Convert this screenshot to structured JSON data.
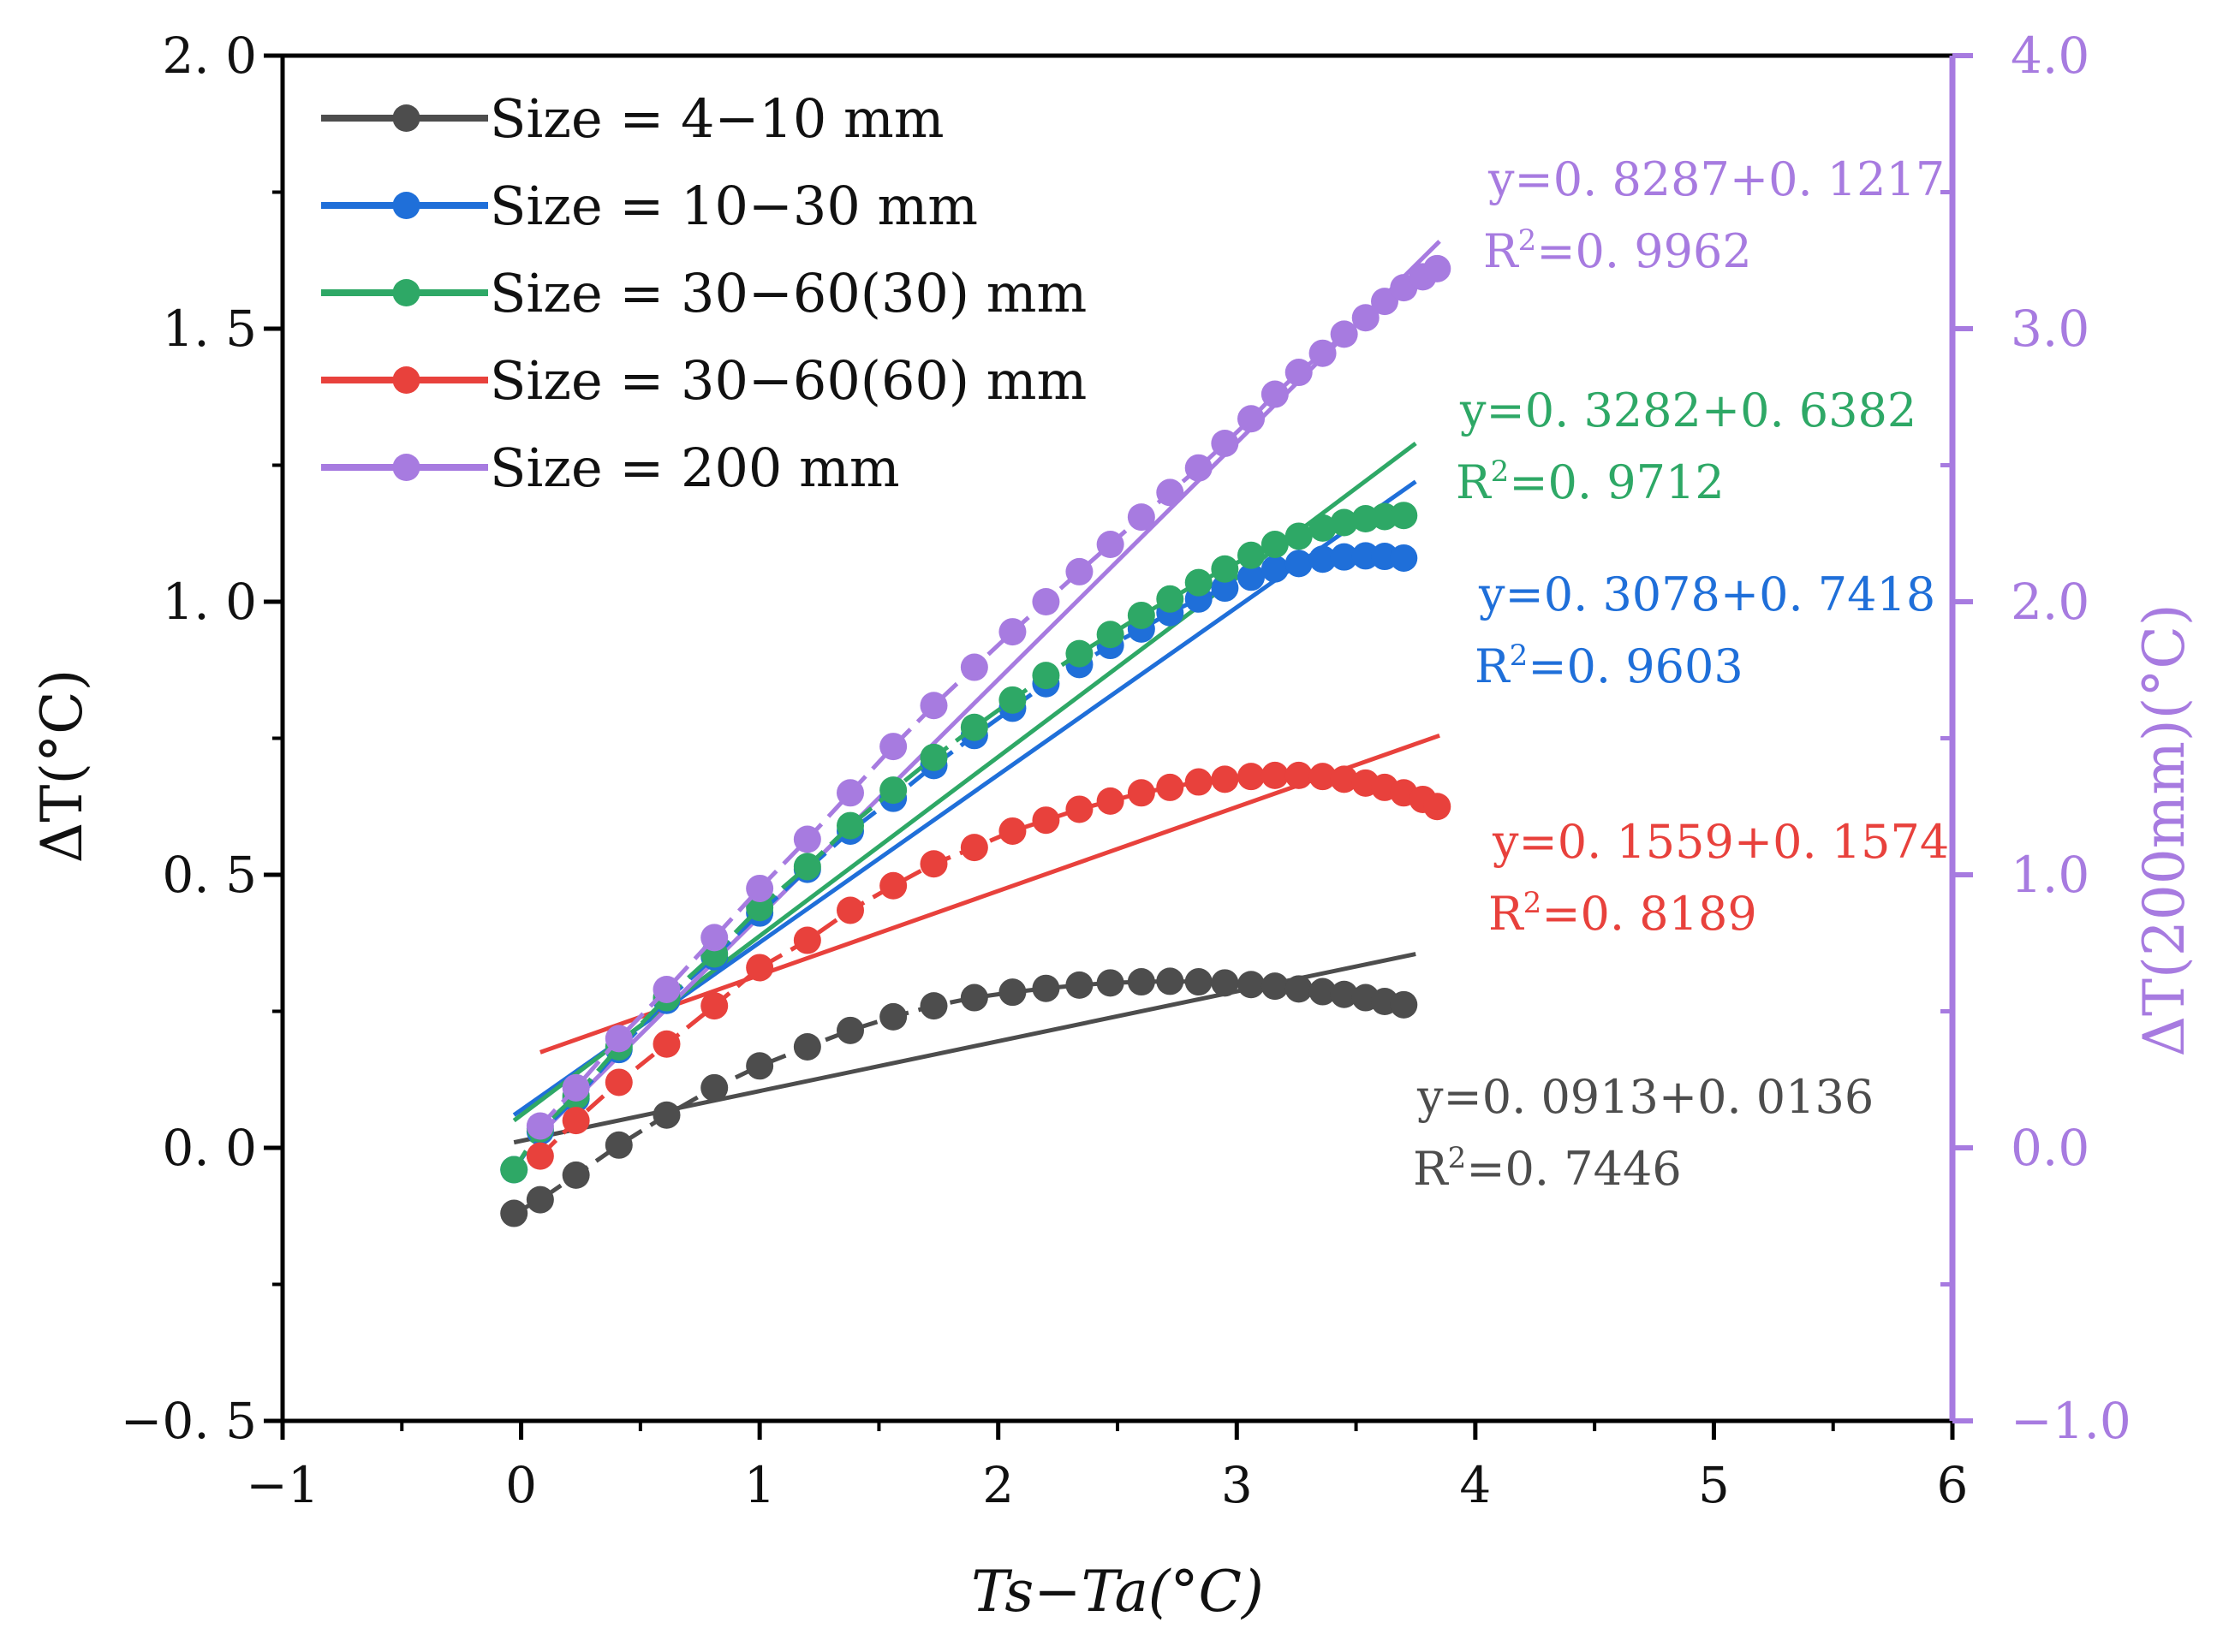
{
  "chart_data": {
    "type": "scatter",
    "xlabel": "Ts−Ta(°C)",
    "ylabel": "ΔT(°C)",
    "y2label": "ΔT(200mm)(°C)",
    "xlim": [
      -1,
      6
    ],
    "ylim": [
      -0.5,
      2.0
    ],
    "y2lim": [
      -1.0,
      4.0
    ],
    "x_ticks": [
      -1,
      0,
      1,
      2,
      3,
      4,
      5,
      6
    ],
    "x_tick_labels": [
      "−1",
      "0",
      "1",
      "2",
      "3",
      "4",
      "5",
      "6"
    ],
    "y_ticks": [
      -0.5,
      0.0,
      0.5,
      1.0,
      1.5,
      2.0
    ],
    "y_tick_labels": [
      "−0. 5",
      "0. 0",
      "0. 5",
      "1. 0",
      "1. 5",
      "2. 0"
    ],
    "y2_ticks": [
      -1.0,
      0.0,
      1.0,
      2.0,
      3.0,
      4.0
    ],
    "y2_tick_labels": [
      "−1.0",
      "0.0",
      "1.0",
      "2.0",
      "3.0",
      "4.0"
    ],
    "legend_position": "top-left",
    "series": [
      {
        "name": "Size = 4−10 mm",
        "color": "#4d4d4d",
        "axis": "left",
        "x": [
          -0.03,
          0.08,
          0.23,
          0.41,
          0.61,
          0.81,
          1.0,
          1.2,
          1.38,
          1.56,
          1.73,
          1.9,
          2.06,
          2.2,
          2.34,
          2.47,
          2.6,
          2.72,
          2.84,
          2.95,
          3.06,
          3.16,
          3.26,
          3.36,
          3.45,
          3.54,
          3.62,
          3.7
        ],
        "y": [
          -0.12,
          -0.095,
          -0.05,
          0.005,
          0.06,
          0.11,
          0.15,
          0.185,
          0.215,
          0.24,
          0.26,
          0.275,
          0.285,
          0.292,
          0.298,
          0.302,
          0.304,
          0.305,
          0.304,
          0.302,
          0.299,
          0.296,
          0.291,
          0.286,
          0.281,
          0.275,
          0.268,
          0.262
        ],
        "fit": {
          "x0": -0.03,
          "x1": 3.75,
          "y0": 0.01,
          "y1": 0.355
        },
        "annotation": {
          "equation": "y=0. 0913+0. 0136",
          "r2_label": "R",
          "r2_exp": "2",
          "r2_value": "=0. 7446"
        }
      },
      {
        "name": "Size = 10−30 mm",
        "color": "#1f6fd9",
        "axis": "left",
        "x": [
          -0.03,
          0.08,
          0.23,
          0.41,
          0.61,
          0.81,
          1.0,
          1.2,
          1.38,
          1.56,
          1.73,
          1.9,
          2.06,
          2.2,
          2.34,
          2.47,
          2.6,
          2.72,
          2.84,
          2.95,
          3.06,
          3.16,
          3.26,
          3.36,
          3.45,
          3.54,
          3.62,
          3.7
        ],
        "y": [
          -0.04,
          0.03,
          0.09,
          0.18,
          0.27,
          0.35,
          0.43,
          0.51,
          0.58,
          0.64,
          0.7,
          0.755,
          0.805,
          0.85,
          0.885,
          0.92,
          0.95,
          0.98,
          1.005,
          1.025,
          1.045,
          1.06,
          1.07,
          1.078,
          1.082,
          1.084,
          1.083,
          1.08
        ],
        "fit": {
          "x0": -0.03,
          "x1": 3.75,
          "y0": 0.06,
          "y1": 1.22
        },
        "annotation": {
          "equation": "y=0. 3078+0. 7418",
          "r2_label": "R",
          "r2_exp": "2",
          "r2_value": "=0. 9603"
        }
      },
      {
        "name": "Size = 30−60(30) mm",
        "color": "#2ea866",
        "axis": "left",
        "x": [
          -0.03,
          0.08,
          0.23,
          0.41,
          0.61,
          0.81,
          1.0,
          1.2,
          1.38,
          1.56,
          1.73,
          1.9,
          2.06,
          2.2,
          2.34,
          2.47,
          2.6,
          2.72,
          2.84,
          2.95,
          3.06,
          3.16,
          3.26,
          3.36,
          3.45,
          3.54,
          3.62,
          3.7
        ],
        "y": [
          -0.04,
          0.035,
          0.095,
          0.185,
          0.275,
          0.355,
          0.44,
          0.515,
          0.59,
          0.655,
          0.715,
          0.77,
          0.82,
          0.865,
          0.905,
          0.94,
          0.975,
          1.005,
          1.035,
          1.06,
          1.085,
          1.105,
          1.12,
          1.135,
          1.145,
          1.152,
          1.156,
          1.158
        ],
        "fit": {
          "x0": -0.03,
          "x1": 3.75,
          "y0": 0.05,
          "y1": 1.29
        },
        "annotation": {
          "equation": "y=0. 3282+0. 6382",
          "r2_label": "R",
          "r2_exp": "2",
          "r2_value": "=0. 9712"
        }
      },
      {
        "name": "Size = 30−60(60) mm",
        "color": "#e8413c",
        "axis": "left",
        "x": [
          0.08,
          0.23,
          0.41,
          0.61,
          0.81,
          1.0,
          1.2,
          1.38,
          1.56,
          1.73,
          1.9,
          2.06,
          2.2,
          2.34,
          2.47,
          2.6,
          2.72,
          2.84,
          2.95,
          3.06,
          3.16,
          3.26,
          3.36,
          3.45,
          3.54,
          3.62,
          3.7,
          3.78,
          3.84
        ],
        "y": [
          -0.015,
          0.05,
          0.12,
          0.19,
          0.26,
          0.33,
          0.38,
          0.435,
          0.48,
          0.52,
          0.55,
          0.58,
          0.6,
          0.62,
          0.635,
          0.65,
          0.66,
          0.67,
          0.675,
          0.68,
          0.682,
          0.682,
          0.68,
          0.675,
          0.668,
          0.66,
          0.65,
          0.638,
          0.625
        ],
        "fit": {
          "x0": 0.08,
          "x1": 3.85,
          "y0": 0.175,
          "y1": 0.755
        },
        "annotation": {
          "equation": "y=0. 1559+0. 1574",
          "r2_label": "R",
          "r2_exp": "2",
          "r2_value": "=0. 8189"
        }
      },
      {
        "name": "Size = 200 mm",
        "color": "#a77be0",
        "axis": "right",
        "x": [
          0.08,
          0.23,
          0.41,
          0.61,
          0.81,
          1.0,
          1.2,
          1.38,
          1.56,
          1.73,
          1.9,
          2.06,
          2.2,
          2.34,
          2.47,
          2.6,
          2.72,
          2.84,
          2.95,
          3.06,
          3.16,
          3.26,
          3.36,
          3.45,
          3.54,
          3.62,
          3.7,
          3.78,
          3.84
        ],
        "y": [
          0.08,
          0.22,
          0.4,
          0.58,
          0.77,
          0.95,
          1.13,
          1.3,
          1.47,
          1.62,
          1.76,
          1.89,
          2.0,
          2.11,
          2.21,
          2.31,
          2.4,
          2.49,
          2.58,
          2.67,
          2.76,
          2.84,
          2.91,
          2.98,
          3.04,
          3.1,
          3.15,
          3.19,
          3.22
        ],
        "fit": {
          "x0": 0.08,
          "x1": 3.85,
          "y0": 0.05,
          "y1": 3.32
        },
        "annotation": {
          "equation": "y=0. 8287+0. 1217",
          "r2_label": "R",
          "r2_exp": "2",
          "r2_value": "=0. 9962"
        }
      }
    ]
  }
}
